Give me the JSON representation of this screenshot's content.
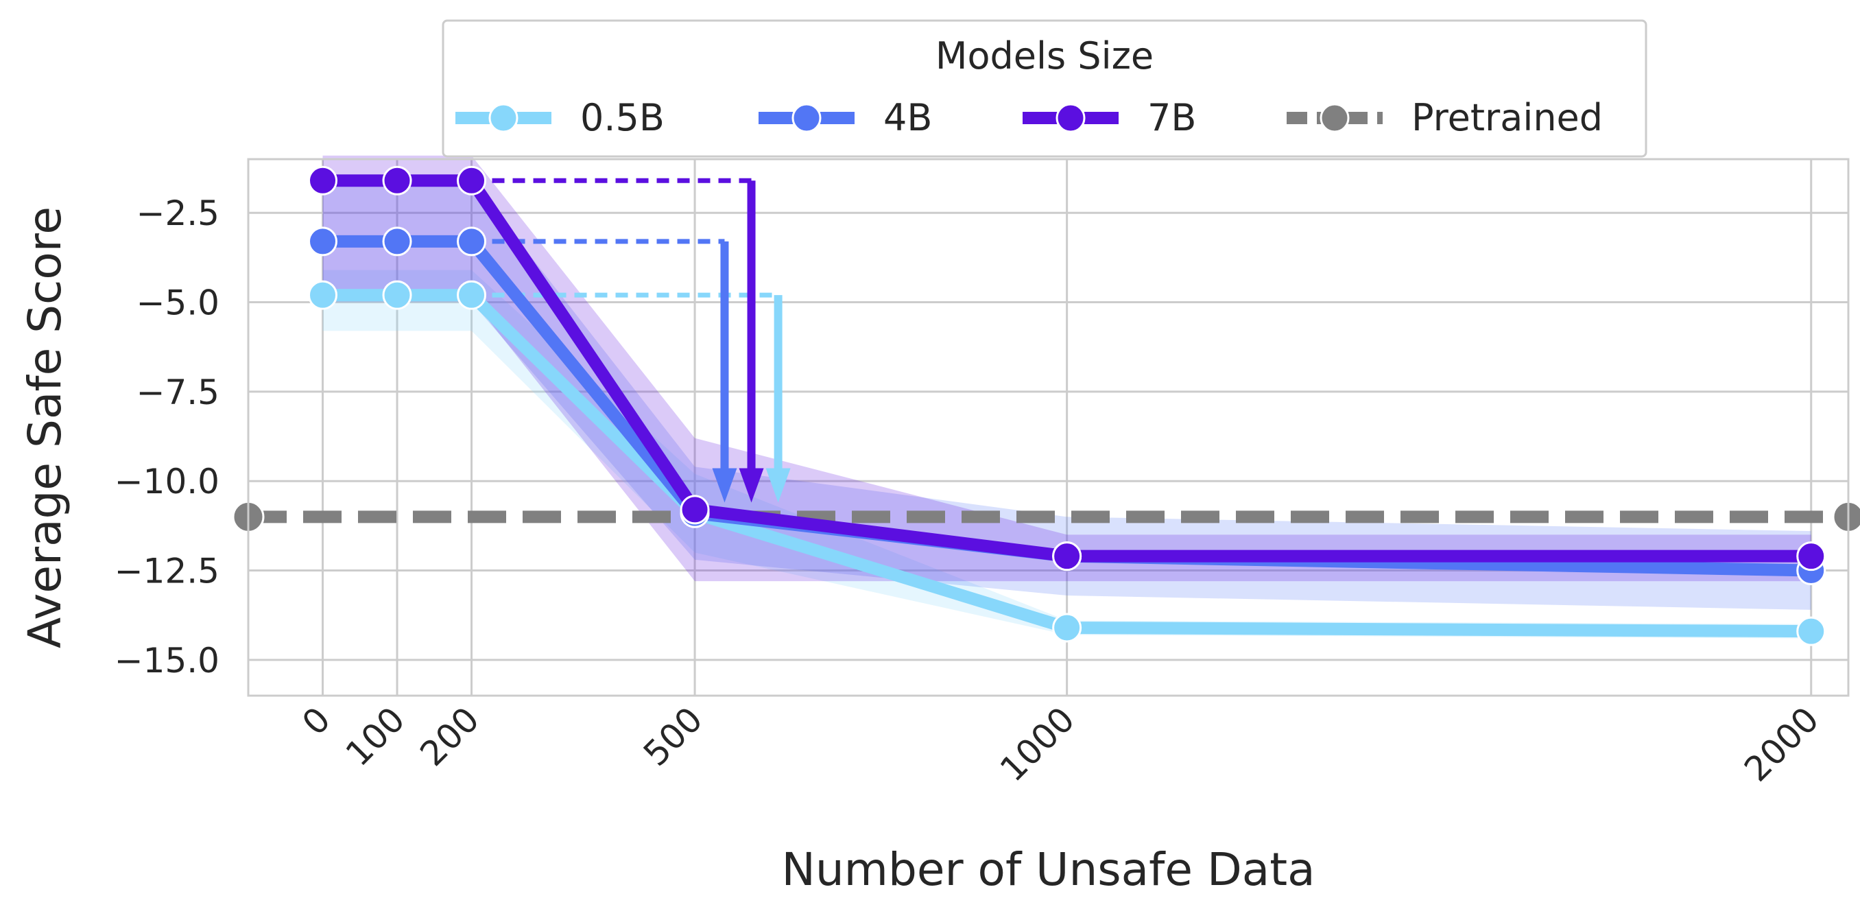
{
  "chart_data": {
    "type": "line",
    "xlabel": "Number of Unsafe Data",
    "ylabel": "Average Safe Score",
    "x": [
      0,
      100,
      200,
      500,
      1000,
      2000
    ],
    "x_ticks": [
      "0",
      "100",
      "200",
      "500",
      "1000",
      "2000"
    ],
    "y_ticks": [
      "−2.5",
      "−5.0",
      "−7.5",
      "−10.0",
      "−12.5",
      "−15.0"
    ],
    "y_tick_values": [
      -2.5,
      -5.0,
      -7.5,
      -10.0,
      -12.5,
      -15.0
    ],
    "xlim": [
      -100,
      2050
    ],
    "ylim": [
      -16.0,
      -1.0
    ],
    "grid": true,
    "legend": {
      "title": "Models Size",
      "position": "top-center"
    },
    "series": [
      {
        "name": "0.5B",
        "color": "#87d7fb",
        "values": [
          -4.8,
          -4.8,
          -4.8,
          -10.9,
          -14.1,
          -14.2
        ],
        "band_low": [
          -5.8,
          -5.8,
          -5.8,
          -12.0,
          -14.3,
          -14.4
        ],
        "band_high": [
          -4.1,
          -4.1,
          -4.1,
          -9.8,
          -13.9,
          -14.0
        ]
      },
      {
        "name": "4B",
        "color": "#5276f5",
        "values": [
          -3.3,
          -3.3,
          -3.3,
          -10.9,
          -12.1,
          -12.5
        ],
        "band_low": [
          -5.0,
          -5.0,
          -5.0,
          -12.2,
          -13.2,
          -13.6
        ],
        "band_high": [
          -1.6,
          -1.6,
          -1.6,
          -9.6,
          -11.0,
          -11.4
        ]
      },
      {
        "name": "7B",
        "color": "#5b0fe0",
        "values": [
          -1.6,
          -1.6,
          -1.6,
          -10.8,
          -12.1,
          -12.1
        ],
        "band_low": [
          -4.9,
          -4.9,
          -4.9,
          -12.8,
          -12.8,
          -12.8
        ],
        "band_high": [
          -0.9,
          -0.9,
          -0.9,
          -8.8,
          -11.5,
          -11.5
        ]
      }
    ],
    "baseline": {
      "name": "Pretrained",
      "color": "#808080",
      "value": -11.0
    },
    "drops": [
      {
        "series": "0.5B",
        "y_from": -4.8,
        "y_to": -10.6,
        "x_end": 612
      },
      {
        "series": "4B",
        "y_from": -3.3,
        "y_to": -10.6,
        "x_end": 540
      },
      {
        "series": "7B",
        "y_from": -1.6,
        "y_to": -10.6,
        "x_end": 576
      }
    ]
  }
}
